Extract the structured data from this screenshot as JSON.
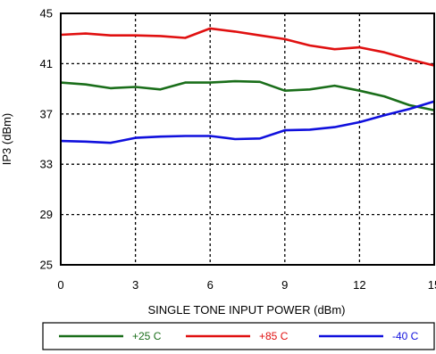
{
  "chart_data": {
    "type": "line",
    "xlabel": "SINGLE TONE INPUT POWER (dBm)",
    "ylabel": "IP3 (dBm)",
    "xlim": [
      0,
      15
    ],
    "ylim": [
      25,
      45
    ],
    "xticks": [
      0,
      3,
      6,
      9,
      12,
      15
    ],
    "yticks": [
      25,
      29,
      33,
      37,
      41,
      45
    ],
    "xtick_labels": [
      "0",
      "3",
      "6",
      "9",
      "12",
      "15"
    ],
    "ytick_labels": [
      "25",
      "29",
      "33",
      "37",
      "41",
      "45"
    ],
    "grid": true,
    "legend_position": "bottom",
    "x": [
      0,
      1,
      2,
      3,
      4,
      5,
      6,
      7,
      8,
      9,
      10,
      11,
      12,
      13,
      14,
      15
    ],
    "series": [
      {
        "name": "+25 C",
        "color": "#1a6e1a",
        "values": [
          39.5,
          39.35,
          39.05,
          39.15,
          38.95,
          39.5,
          39.5,
          39.6,
          39.55,
          38.85,
          38.95,
          39.25,
          38.85,
          38.4,
          37.7,
          37.3
        ]
      },
      {
        "name": "+85 C",
        "color": "#e01010",
        "values": [
          43.3,
          43.4,
          43.25,
          43.25,
          43.2,
          43.05,
          43.8,
          43.55,
          43.25,
          42.95,
          42.45,
          42.15,
          42.3,
          41.9,
          41.35,
          40.85
        ]
      },
      {
        "name": "-40 C",
        "color": "#1010dd",
        "values": [
          34.85,
          34.8,
          34.7,
          35.1,
          35.2,
          35.25,
          35.25,
          35.0,
          35.05,
          35.7,
          35.75,
          35.95,
          36.35,
          36.9,
          37.4,
          38.0
        ]
      }
    ]
  }
}
